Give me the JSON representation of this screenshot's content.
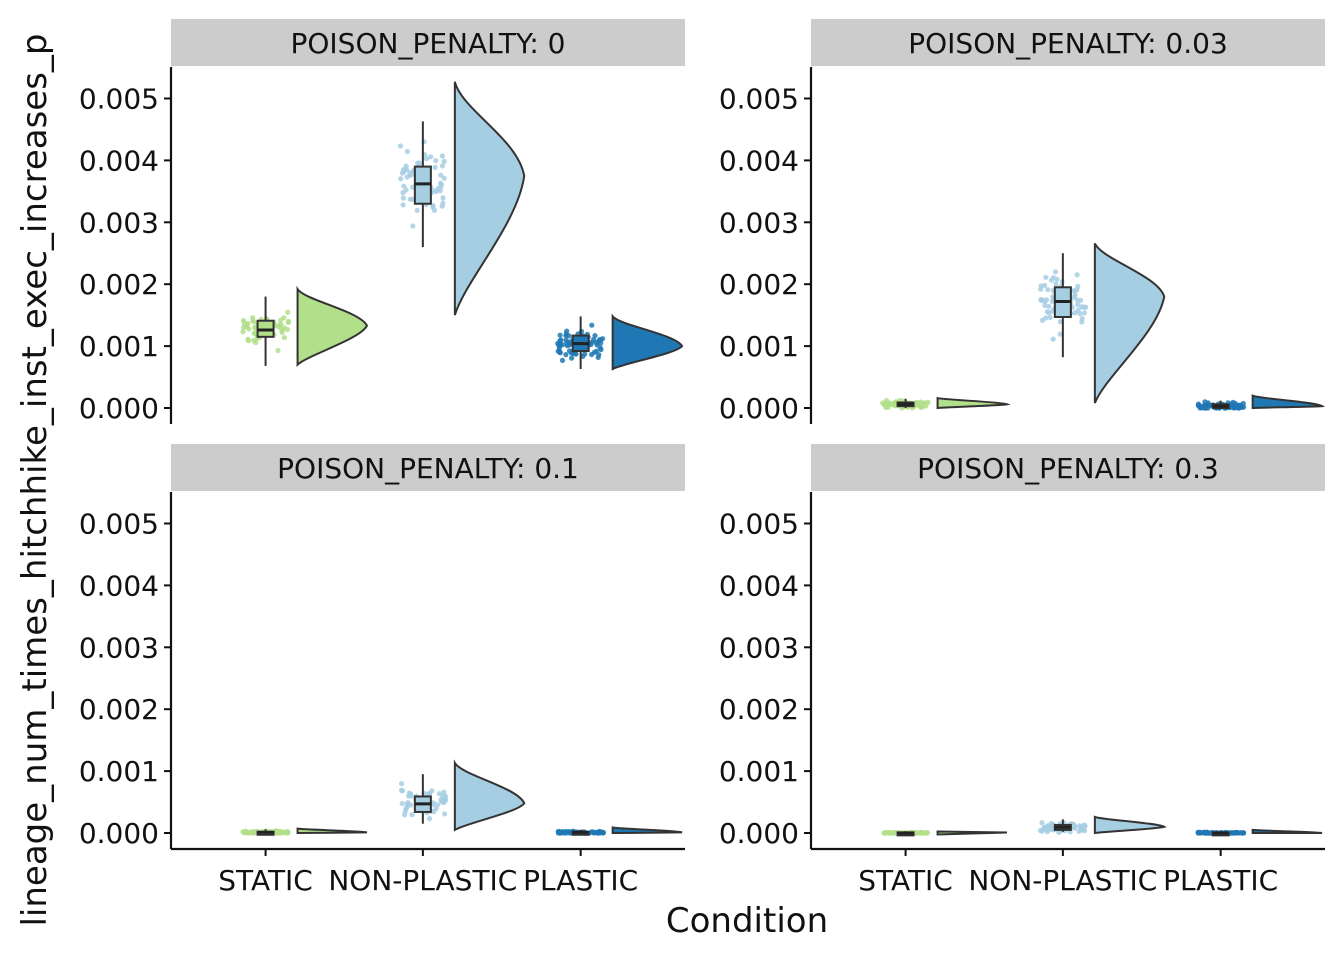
{
  "chart_data": {
    "type": "raincloud",
    "xlabel": "Condition",
    "ylabel": "lineage_num_times_hitchhike_inst_exec_increases_p",
    "categories": [
      "STATIC",
      "NON-PLASTIC",
      "PLASTIC"
    ],
    "ylim": [
      -0.00025,
      0.0055
    ],
    "yticks": [
      0.0,
      0.001,
      0.002,
      0.003,
      0.004,
      0.005
    ],
    "ytick_labels": [
      "0.000",
      "0.001",
      "0.002",
      "0.003",
      "0.004",
      "0.005"
    ],
    "colors": {
      "STATIC": "#b2df8a",
      "NON-PLASTIC": "#a6cee3",
      "PLASTIC": "#1f78b4"
    },
    "strip_fill": "#cccccc",
    "grid": false,
    "legend": "none",
    "facets": [
      {
        "label": "POISON_PENALTY: 0",
        "groups": [
          {
            "name": "STATIC",
            "min": 0.00068,
            "q1": 0.00115,
            "median": 0.00126,
            "q3": 0.00141,
            "max": 0.0018,
            "pmin": 0.0007,
            "pmax": 0.00192,
            "mode": 0.00133
          },
          {
            "name": "NON-PLASTIC",
            "min": 0.0026,
            "q1": 0.0033,
            "median": 0.00362,
            "q3": 0.0039,
            "max": 0.00463,
            "pmin": 0.0015,
            "pmax": 0.00527,
            "mode": 0.00375
          },
          {
            "name": "PLASTIC",
            "min": 0.00063,
            "q1": 0.00092,
            "median": 0.00104,
            "q3": 0.00117,
            "max": 0.00148,
            "pmin": 0.00063,
            "pmax": 0.00148,
            "mode": 0.001
          }
        ]
      },
      {
        "label": "POISON_PENALTY: 0.03",
        "groups": [
          {
            "name": "STATIC",
            "min": 0.0,
            "q1": 3e-05,
            "median": 6e-05,
            "q3": 9e-05,
            "max": 0.00015,
            "pmin": 0.0,
            "pmax": 0.00016,
            "mode": 6e-05
          },
          {
            "name": "NON-PLASTIC",
            "min": 0.00082,
            "q1": 0.00147,
            "median": 0.00172,
            "q3": 0.00195,
            "max": 0.0025,
            "pmin": 8e-05,
            "pmax": 0.00266,
            "mode": 0.0018
          },
          {
            "name": "PLASTIC",
            "min": 0.0,
            "q1": 0.0,
            "median": 3e-05,
            "q3": 6e-05,
            "max": 0.00012,
            "pmin": 0.0,
            "pmax": 0.0002,
            "mode": 3e-05
          }
        ]
      },
      {
        "label": "POISON_PENALTY: 0.1",
        "groups": [
          {
            "name": "STATIC",
            "min": 0.0,
            "q1": 0.0,
            "median": 1e-05,
            "q3": 2e-05,
            "max": 6e-05,
            "pmin": 0.0,
            "pmax": 7e-05,
            "mode": 1e-05
          },
          {
            "name": "NON-PLASTIC",
            "min": 0.00015,
            "q1": 0.00034,
            "median": 0.00047,
            "q3": 0.00059,
            "max": 0.00095,
            "pmin": 5e-05,
            "pmax": 0.00113,
            "mode": 0.00048
          },
          {
            "name": "PLASTIC",
            "min": 0.0,
            "q1": 0.0,
            "median": 1e-05,
            "q3": 2e-05,
            "max": 5e-05,
            "pmin": 0.0,
            "pmax": 9e-05,
            "mode": 1e-05
          }
        ]
      },
      {
        "label": "POISON_PENALTY: 0.3",
        "groups": [
          {
            "name": "STATIC",
            "min": 0.0,
            "q1": 0.0,
            "median": 0.0,
            "q3": 1e-05,
            "max": 3e-05,
            "pmin": 0.0,
            "pmax": 4e-05,
            "mode": 0.0
          },
          {
            "name": "NON-PLASTIC",
            "min": 2e-05,
            "q1": 5e-05,
            "median": 9e-05,
            "q3": 0.00013,
            "max": 0.00022,
            "pmin": 0.0,
            "pmax": 0.00026,
            "mode": 0.0001
          },
          {
            "name": "PLASTIC",
            "min": 0.0,
            "q1": 0.0,
            "median": 0.0,
            "q3": 1e-05,
            "max": 3e-05,
            "pmin": 0.0,
            "pmax": 5e-05,
            "mode": 0.0
          }
        ]
      }
    ]
  }
}
